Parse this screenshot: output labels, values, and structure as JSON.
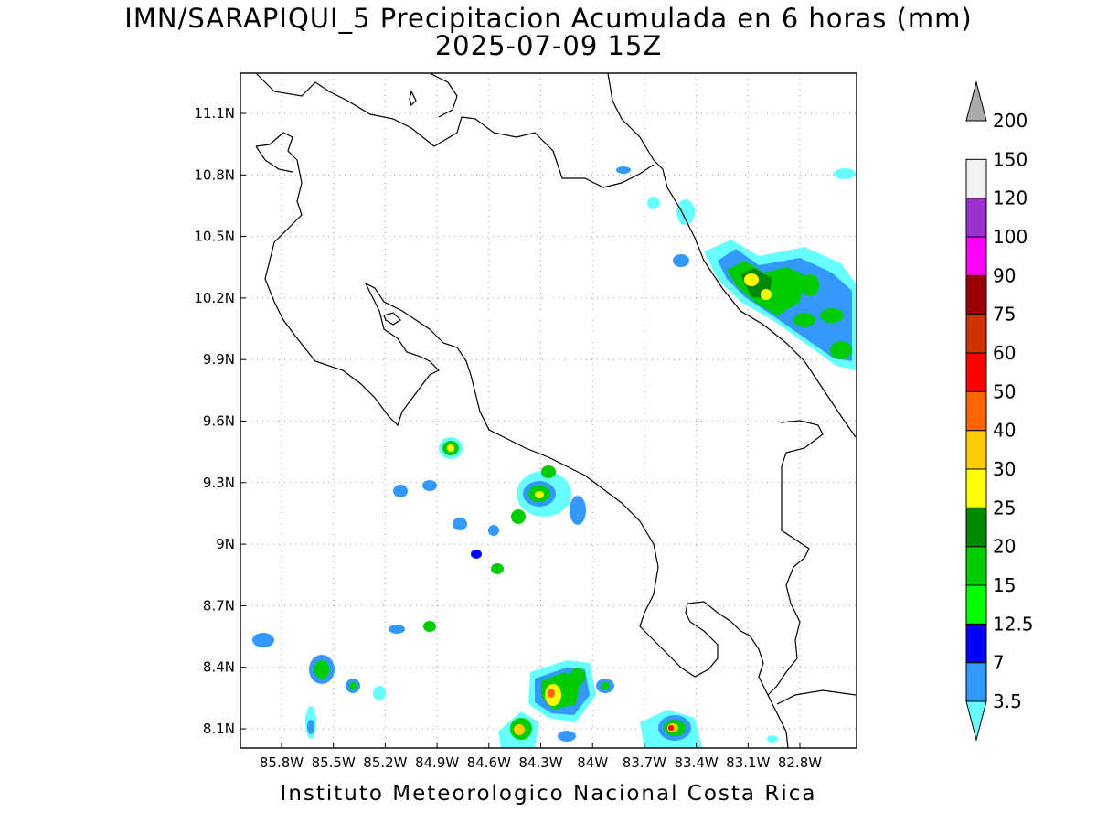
{
  "title_line1": "IMN/SARAPIQUI_5 Precipitacion Acumulada en 6 horas (mm)",
  "title_line2": "2025-07-09 15Z",
  "footer": "Instituto Meteorologico Nacional Costa Rica",
  "map": {
    "lon_ticks": [
      "85.8W",
      "85.5W",
      "85.2W",
      "84.9W",
      "84.6W",
      "84.3W",
      "84W",
      "83.7W",
      "83.4W",
      "83.1W",
      "82.8W"
    ],
    "lat_ticks": [
      "11.1N",
      "10.8N",
      "10.5N",
      "10.2N",
      "9.9N",
      "9.6N",
      "9.3N",
      "9N",
      "8.7N",
      "8.4N",
      "8.1N"
    ],
    "grid": "dotted"
  },
  "colorbar": {
    "levels": [
      "3.5",
      "7",
      "12.5",
      "15",
      "20",
      "25",
      "30",
      "40",
      "50",
      "60",
      "75",
      "90",
      "100",
      "120",
      "150",
      "200"
    ],
    "colors": [
      "#66ffff",
      "#3399ff",
      "#0000ff",
      "#00ff00",
      "#00cc00",
      "#008800",
      "#ffff00",
      "#ffcc00",
      "#ff6600",
      "#ff0000",
      "#cc3300",
      "#990000",
      "#ff00ff",
      "#9933cc",
      "#f2f2f2",
      "#aaaaaa"
    ]
  }
}
